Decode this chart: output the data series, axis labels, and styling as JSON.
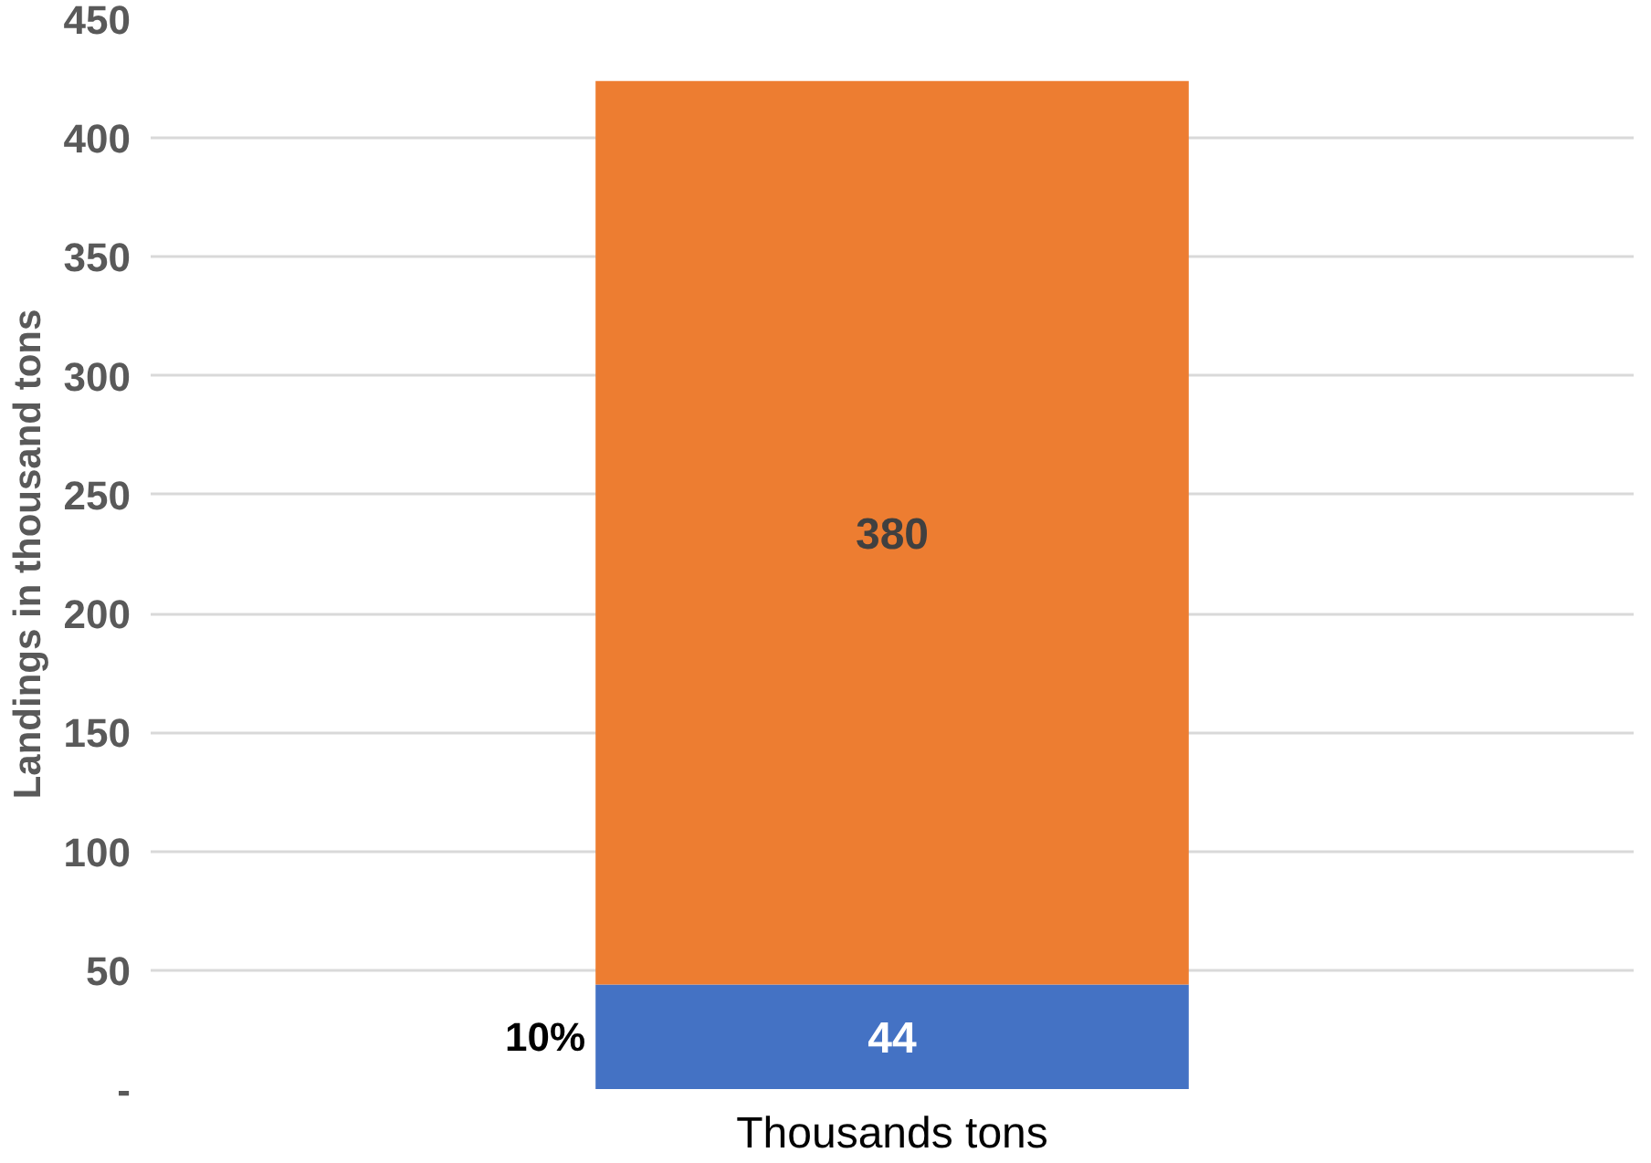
{
  "chart_data": {
    "type": "bar",
    "stacked": true,
    "ylabel": "Landings in thousand tons",
    "categories": [
      "Thousands tons"
    ],
    "series": [
      {
        "color": "#4472c4",
        "values": [
          44
        ]
      },
      {
        "color": "#ed7d31",
        "values": [
          380
        ]
      }
    ],
    "ylim": [
      0,
      450
    ],
    "yticks": [
      {
        "value": 0,
        "label": "-"
      },
      50,
      100,
      150,
      200,
      250,
      300,
      350,
      400,
      450
    ],
    "grid": "y",
    "data_labels": true,
    "annotations": [
      "10%"
    ]
  }
}
